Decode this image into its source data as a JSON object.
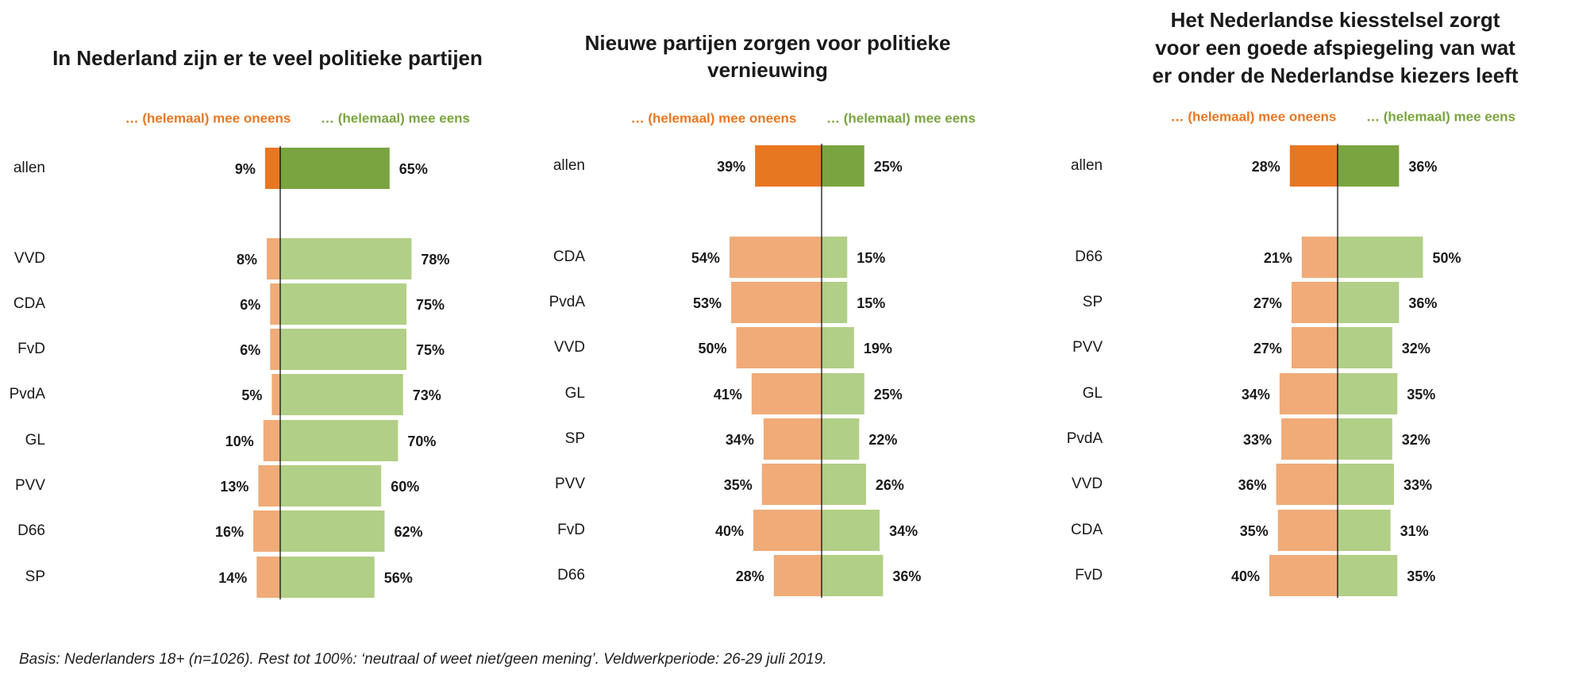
{
  "chart_data": [
    {
      "type": "bar",
      "title": "In Nederland zijn er te veel politieke partijen",
      "legend": {
        "disagree": "… (helemaal) mee oneens",
        "agree": "… (helemaal) mee eens"
      },
      "categories": [
        "allen",
        "VVD",
        "CDA",
        "FvD",
        "PvdA",
        "GL",
        "PVV",
        "D66",
        "SP"
      ],
      "series": [
        {
          "name": "… (helemaal) mee oneens",
          "values": [
            9,
            8,
            6,
            6,
            5,
            10,
            13,
            16,
            14
          ],
          "labels": [
            "9%",
            "8%",
            "6%",
            "6%",
            "5%",
            "10%",
            "13%",
            "16%",
            "14%"
          ]
        },
        {
          "name": "… (helemaal) mee eens",
          "values": [
            65,
            78,
            75,
            75,
            73,
            70,
            60,
            62,
            56
          ],
          "labels": [
            "65%",
            "78%",
            "75%",
            "75%",
            "73%",
            "70%",
            "60%",
            "62%",
            "56%"
          ]
        }
      ]
    },
    {
      "type": "bar",
      "title": "Nieuwe partijen zorgen voor politieke vernieuwing",
      "legend": {
        "disagree": "… (helemaal) mee oneens",
        "agree": "… (helemaal) mee eens"
      },
      "categories": [
        "allen",
        "CDA",
        "PvdA",
        "VVD",
        "GL",
        "SP",
        "PVV",
        "FvD",
        "D66"
      ],
      "series": [
        {
          "name": "… (helemaal) mee oneens",
          "values": [
            39,
            54,
            53,
            50,
            41,
            34,
            35,
            40,
            28
          ],
          "labels": [
            "39%",
            "54%",
            "53%",
            "50%",
            "41%",
            "34%",
            "35%",
            "40%",
            "28%"
          ]
        },
        {
          "name": "… (helemaal) mee eens",
          "values": [
            25,
            15,
            15,
            19,
            25,
            22,
            26,
            34,
            36
          ],
          "labels": [
            "25%",
            "15%",
            "15%",
            "19%",
            "25%",
            "22%",
            "26%",
            "34%",
            "36%"
          ]
        }
      ]
    },
    {
      "type": "bar",
      "title": "Het Nederlandse kiesstelsel zorgt voor een goede afspiegeling van wat er onder de Nederlandse kiezers leeft",
      "legend": {
        "disagree": "… (helemaal) mee oneens",
        "agree": "… (helemaal) mee eens"
      },
      "categories": [
        "allen",
        "D66",
        "SP",
        "PVV",
        "GL",
        "PvdA",
        "VVD",
        "CDA",
        "FvD"
      ],
      "series": [
        {
          "name": "… (helemaal) mee oneens",
          "values": [
            28,
            21,
            27,
            27,
            34,
            33,
            36,
            35,
            40
          ],
          "labels": [
            "28%",
            "21%",
            "27%",
            "27%",
            "34%",
            "33%",
            "36%",
            "35%",
            "40%"
          ]
        },
        {
          "name": "… (helemaal) mee eens",
          "values": [
            36,
            50,
            36,
            32,
            35,
            32,
            33,
            31,
            35
          ],
          "labels": [
            "36%",
            "50%",
            "36%",
            "32%",
            "35%",
            "32%",
            "33%",
            "31%",
            "35%"
          ]
        }
      ]
    }
  ],
  "colors": {
    "disagree_total": "#E87722",
    "agree_total": "#7AA43F",
    "disagree_party": "#F0AB78",
    "agree_party": "#B1CF86",
    "legend_disagree_text": "#E87722",
    "legend_agree_text": "#7AA43F"
  },
  "footnote": "Basis: Nederlanders 18+ (n=1026). Rest tot 100%: ‘neutraal of weet niet/geen mening’. Veldwerkperiode: 26-29 juli 2019."
}
